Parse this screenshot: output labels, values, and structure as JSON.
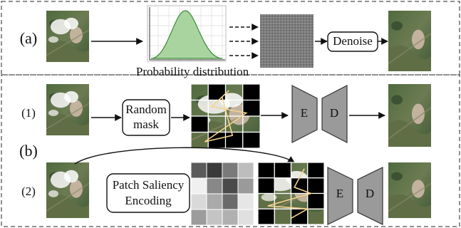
{
  "panel_a": {
    "label": "(a)",
    "caption": "Probability distribution",
    "step": "Denoise"
  },
  "panel_b": {
    "label": "(b)",
    "rows": [
      {
        "label": "(1)",
        "step_lines": [
          "Random",
          "mask"
        ],
        "encoder": "E",
        "decoder": "D"
      },
      {
        "label": "(2)",
        "step_lines": [
          "Patch Saliency",
          "Encoding"
        ],
        "encoder": "E",
        "decoder": "D"
      }
    ]
  }
}
